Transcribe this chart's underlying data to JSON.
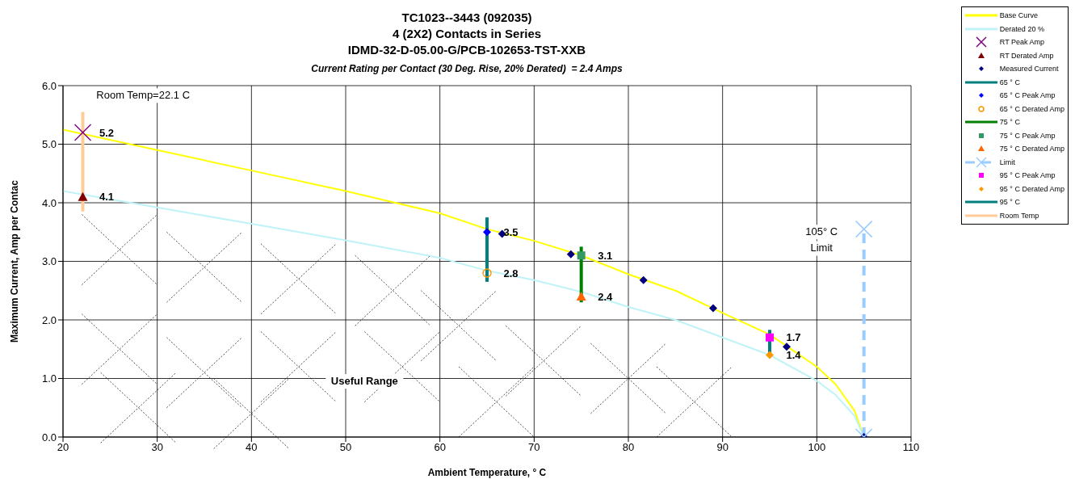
{
  "chart_data": {
    "type": "line",
    "title": "TC1023--3443 (092035)\n4 (2X2) Contacts in Series\nIDMD-32-D-05.00-G/PCB-102653-TST-XXB",
    "subtitle": "Current Rating per Contact (30 Deg. Rise, 20% Derated)  = 2.4 Amps",
    "xlabel": "Ambient Temperature,  ° C",
    "ylabel": "Maximum Current, Amp per Contac",
    "xlim": [
      20,
      110
    ],
    "ylim": [
      0,
      6
    ],
    "xticks": [
      20,
      30,
      40,
      50,
      60,
      70,
      80,
      90,
      100,
      110
    ],
    "yticks": [
      {
        "value": 0,
        "label": "0.0"
      },
      {
        "value": 1,
        "label": "1.0"
      },
      {
        "value": 2,
        "label": "2.0"
      },
      {
        "value": 3,
        "label": "3.0"
      },
      {
        "value": 4,
        "label": "4.0"
      },
      {
        "value": 5,
        "label": "5.0"
      },
      {
        "value": 6,
        "label": "6.0"
      }
    ],
    "grid": true,
    "legend": "top right",
    "series": [
      {
        "name": "Base Curve",
        "color": "#ffff00",
        "marker": "none",
        "x": [
          20,
          30,
          40,
          50,
          60,
          65,
          70,
          75,
          80,
          85,
          90,
          95,
          100,
          102,
          104,
          105
        ],
        "values": [
          5.25,
          4.9,
          4.55,
          4.2,
          3.82,
          3.55,
          3.35,
          3.1,
          2.78,
          2.5,
          2.12,
          1.75,
          1.2,
          0.9,
          0.45,
          0
        ]
      },
      {
        "name": "Derated 20 %",
        "color": "#bff3f8",
        "marker": "none",
        "x": [
          20,
          30,
          40,
          50,
          60,
          65,
          70,
          75,
          80,
          85,
          90,
          95,
          100,
          102,
          104,
          105
        ],
        "values": [
          4.2,
          3.92,
          3.64,
          3.36,
          3.06,
          2.84,
          2.68,
          2.48,
          2.22,
          2,
          1.7,
          1.4,
          0.96,
          0.72,
          0.36,
          0
        ]
      },
      {
        "name": "RT Peak Amp",
        "type": "scatter",
        "color": "#800080",
        "marker": "cross",
        "x": [
          22.1
        ],
        "values": [
          5.2
        ],
        "value_labels": [
          "5.2"
        ]
      },
      {
        "name": "RT Derated Amp",
        "type": "scatter",
        "color": "#800000",
        "marker": "triangle",
        "x": [
          22.1
        ],
        "values": [
          4.1
        ],
        "value_labels": [
          "4.1"
        ]
      },
      {
        "name": "Measured Current",
        "type": "scatter",
        "color": "#000080",
        "marker": "diamond",
        "x": [
          66.6,
          73.9,
          81.6,
          89,
          96.8,
          105
        ],
        "values": [
          3.47,
          3.12,
          2.68,
          2.2,
          1.54,
          0
        ]
      },
      {
        "name": "65 ° C",
        "type": "line",
        "color": "#008080",
        "marker": "none",
        "x": [
          65,
          65
        ],
        "values": [
          2.65,
          3.75
        ]
      },
      {
        "name": "65 ° C Peak Amp",
        "type": "scatter",
        "color": "#0000ff",
        "marker": "diamond",
        "x": [
          65
        ],
        "values": [
          3.5
        ],
        "value_labels": [
          "3.5"
        ]
      },
      {
        "name": "65 ° C Derated Amp",
        "type": "scatter",
        "color": "#ff9900",
        "marker": "circle",
        "x": [
          65
        ],
        "values": [
          2.8
        ],
        "value_labels": [
          "2.8"
        ]
      },
      {
        "name": "75 ° C",
        "type": "line",
        "color": "#008000",
        "marker": "none",
        "x": [
          75,
          75
        ],
        "values": [
          2.3,
          3.25
        ]
      },
      {
        "name": "75 ° C Peak Amp",
        "type": "scatter",
        "color": "#339966",
        "marker": "square",
        "x": [
          75
        ],
        "values": [
          3.1
        ],
        "value_labels": [
          "3.1"
        ]
      },
      {
        "name": "75 ° C Derated Amp",
        "type": "scatter",
        "color": "#ff6600",
        "marker": "triangle",
        "x": [
          75
        ],
        "values": [
          2.4
        ],
        "value_labels": [
          "2.4"
        ]
      },
      {
        "name": "Limit",
        "type": "line",
        "color": "#99ccff",
        "marker": "cross",
        "line_style": "dashed",
        "x": [
          105,
          105
        ],
        "values": [
          0,
          3.55
        ]
      },
      {
        "name": "95 ° C Peak Amp",
        "type": "scatter",
        "color": "#ff00ff",
        "marker": "square",
        "x": [
          95
        ],
        "values": [
          1.7
        ],
        "value_labels": [
          "1.7"
        ]
      },
      {
        "name": "95 ° C Derated Amp",
        "type": "scatter",
        "color": "#ff9900",
        "marker": "diamond",
        "x": [
          95
        ],
        "values": [
          1.4
        ],
        "value_labels": [
          "1.4"
        ]
      },
      {
        "name": "95 ° C",
        "type": "line",
        "color": "#008080",
        "marker": "none",
        "x": [
          95,
          95
        ],
        "values": [
          1.38,
          1.83
        ]
      },
      {
        "name": "Room Temp",
        "type": "line",
        "color": "#ffcc99",
        "marker": "none",
        "x": [
          22.1,
          22.1
        ],
        "values": [
          3.85,
          5.55
        ]
      }
    ],
    "annotations": [
      "Room Temp=22.1 C",
      "105° C",
      "Limit",
      "Useful Range"
    ]
  }
}
